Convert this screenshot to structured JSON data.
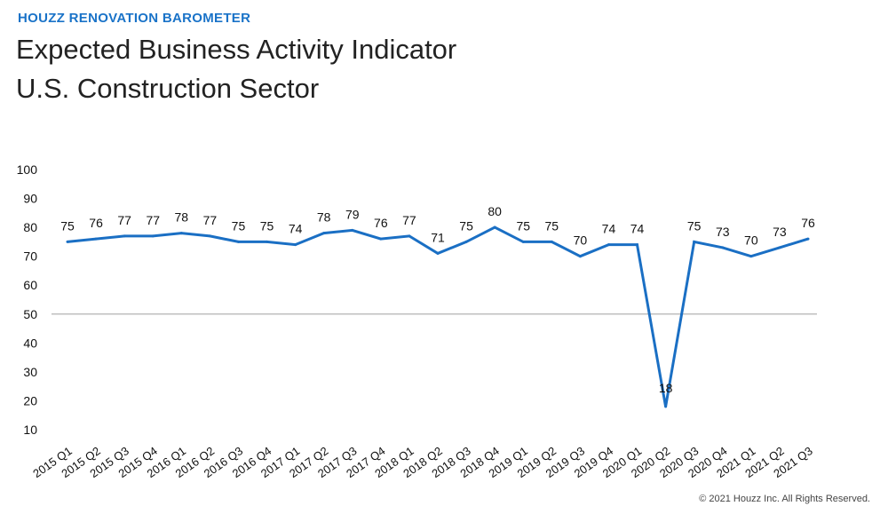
{
  "header": {
    "supertitle": "HOUZZ RENOVATION BAROMETER",
    "title_line1": "Expected Business Activity Indicator",
    "title_line2": "U.S. Construction Sector"
  },
  "footer": {
    "copyright": "© 2021 Houzz Inc. All Rights Reserved."
  },
  "colors": {
    "line": "#1a6fc4",
    "reference": "#b3b3b3",
    "accent": "#1a73c8"
  },
  "chart_data": {
    "type": "line",
    "title": "Expected Business Activity Indicator U.S. Construction Sector",
    "xlabel": "",
    "ylabel": "",
    "ylim": [
      10,
      100
    ],
    "yticks": [
      100,
      90,
      80,
      70,
      60,
      50,
      40,
      30,
      20,
      10
    ],
    "reference_line": 50,
    "grid": false,
    "categories": [
      "2015 Q1",
      "2015 Q2",
      "2015 Q3",
      "2015 Q4",
      "2016 Q1",
      "2016 Q2",
      "2016 Q3",
      "2016 Q4",
      "2017 Q1",
      "2017 Q2",
      "2017 Q3",
      "2017 Q4",
      "2018 Q1",
      "2018 Q2",
      "2018 Q3",
      "2018 Q4",
      "2019 Q1",
      "2019 Q2",
      "2019 Q3",
      "2019 Q4",
      "2020 Q1",
      "2020 Q2",
      "2020 Q3",
      "2020 Q4",
      "2021 Q1",
      "2021 Q2",
      "2021 Q3"
    ],
    "series": [
      {
        "name": "Expected Business Activity Indicator",
        "values": [
          75,
          76,
          77,
          77,
          78,
          77,
          75,
          75,
          74,
          78,
          79,
          76,
          77,
          71,
          75,
          80,
          75,
          75,
          70,
          74,
          74,
          18,
          75,
          73,
          70,
          73,
          76
        ],
        "labels": [
          "75",
          "76",
          "77",
          "77",
          "78",
          "77",
          "75",
          "75",
          "74",
          "78",
          "79",
          "76",
          "77",
          "71",
          "75",
          "80",
          "75",
          "75",
          "70",
          "74",
          "74",
          "18",
          "75",
          "73",
          "70",
          "73",
          "76"
        ]
      }
    ]
  }
}
